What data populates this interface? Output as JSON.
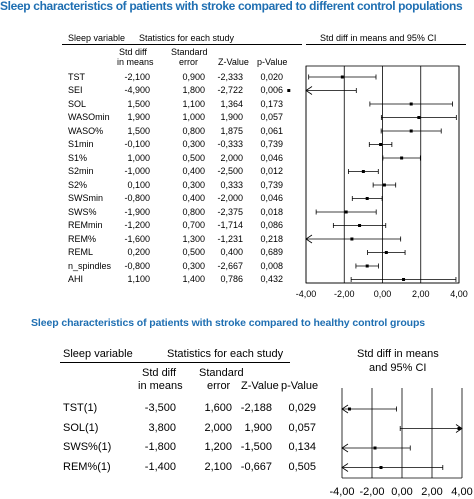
{
  "chart_data": [
    {
      "type": "forest",
      "title": "Sleep characteristics of patients with stroke compared to different control populations",
      "header": {
        "variable": "Sleep variable",
        "stats_group": "Statistics for each study",
        "std_diff": [
          "Std diff",
          "in means"
        ],
        "std_error": [
          "Standard",
          "error"
        ],
        "z_value": "Z-Value",
        "p_value": "p-Value",
        "plot_header": "Std diff in means and 95% CI"
      },
      "rows": [
        {
          "label": "TST",
          "std_diff": "-2,100",
          "se": "0,900",
          "z": "-2,333",
          "p": "0,020",
          "est": -2.1,
          "lo": -3.86,
          "hi": -0.34
        },
        {
          "label": "SEI",
          "std_diff": "-4,900",
          "se": "1,800",
          "z": "-2,722",
          "p": "0,006",
          "est": -4.9,
          "lo": -8.43,
          "hi": -1.37
        },
        {
          "label": "SOL",
          "std_diff": "1,500",
          "se": "1,100",
          "z": "1,364",
          "p": "0,173",
          "est": 1.5,
          "lo": -0.66,
          "hi": 3.66
        },
        {
          "label": "WASOmin",
          "std_diff": "1,900",
          "se": "1,000",
          "z": "1,900",
          "p": "0,057",
          "est": 1.9,
          "lo": -0.06,
          "hi": 3.86
        },
        {
          "label": "WASO%",
          "std_diff": "1,500",
          "se": "0,800",
          "z": "1,875",
          "p": "0,061",
          "est": 1.5,
          "lo": -0.07,
          "hi": 3.07
        },
        {
          "label": "S1min",
          "std_diff": "-0,100",
          "se": "0,300",
          "z": "-0,333",
          "p": "0,739",
          "est": -0.1,
          "lo": -0.69,
          "hi": 0.49
        },
        {
          "label": "S1%",
          "std_diff": "1,000",
          "se": "0,500",
          "z": "2,000",
          "p": "0,046",
          "est": 1.0,
          "lo": 0.02,
          "hi": 1.98
        },
        {
          "label": "S2min",
          "std_diff": "-1,000",
          "se": "0,400",
          "z": "-2,500",
          "p": "0,012",
          "est": -1.0,
          "lo": -1.78,
          "hi": -0.22
        },
        {
          "label": "S2%",
          "std_diff": "0,100",
          "se": "0,300",
          "z": "0,333",
          "p": "0,739",
          "est": 0.1,
          "lo": -0.49,
          "hi": 0.69
        },
        {
          "label": "SWSmin",
          "std_diff": "-0,800",
          "se": "0,400",
          "z": "-2,000",
          "p": "0,046",
          "est": -0.8,
          "lo": -1.58,
          "hi": -0.02
        },
        {
          "label": "SWS%",
          "std_diff": "-1,900",
          "se": "0,800",
          "z": "-2,375",
          "p": "0,018",
          "est": -1.9,
          "lo": -3.47,
          "hi": -0.33
        },
        {
          "label": "REMmin",
          "std_diff": "-1,200",
          "se": "0,700",
          "z": "-1,714",
          "p": "0,086",
          "est": -1.2,
          "lo": -2.57,
          "hi": 0.17
        },
        {
          "label": "REM%",
          "std_diff": "-1,600",
          "se": "1,300",
          "z": "-1,231",
          "p": "0,218",
          "est": -1.6,
          "lo": -4.15,
          "hi": 0.95
        },
        {
          "label": "REML",
          "std_diff": "0,200",
          "se": "0,500",
          "z": "0,400",
          "p": "0,689",
          "est": 0.2,
          "lo": -0.78,
          "hi": 1.18
        },
        {
          "label": "n_spindles",
          "std_diff": "-0,800",
          "se": "0,300",
          "z": "-2,667",
          "p": "0,008",
          "est": -0.8,
          "lo": -1.39,
          "hi": -0.21
        },
        {
          "label": "AHI",
          "std_diff": "1,100",
          "se": "1,400",
          "z": "0,786",
          "p": "0,432",
          "est": 1.1,
          "lo": -1.64,
          "hi": 3.84
        }
      ],
      "x_ticks": [
        -4,
        -2,
        0,
        2,
        4
      ],
      "x_tick_labels": [
        "-4,00",
        "-2,00",
        "0,00",
        "2,00",
        "4,00"
      ],
      "xlim": [
        -4,
        4
      ]
    },
    {
      "type": "forest",
      "title": "Sleep characteristics of patients with stroke compared to healthy control groups",
      "header": {
        "variable": "Sleep variable",
        "stats_group": "Statistics for each study",
        "std_diff": [
          "Std diff",
          "in means"
        ],
        "std_error": [
          "Standard",
          "error"
        ],
        "z_value": "Z-Value",
        "p_value": "p-Value",
        "plot_header": [
          "Std diff in means",
          "and 95% CI"
        ]
      },
      "rows": [
        {
          "label": "TST(1)",
          "std_diff": "-3,500",
          "se": "1,600",
          "z": "-2,188",
          "p": "0,029",
          "est": -3.5,
          "lo": -6.64,
          "hi": -0.36
        },
        {
          "label": "SOL(1)",
          "std_diff": "3,800",
          "se": "2,000",
          "z": "1,900",
          "p": "0,057",
          "est": 3.8,
          "lo": -0.12,
          "hi": 7.72
        },
        {
          "label": "SWS%(1)",
          "std_diff": "-1,800",
          "se": "1,200",
          "z": "-1,500",
          "p": "0,134",
          "est": -1.8,
          "lo": -4.15,
          "hi": 0.55
        },
        {
          "label": "REM%(1)",
          "std_diff": "-1,400",
          "se": "2,100",
          "z": "-0,667",
          "p": "0,505",
          "est": -1.4,
          "lo": -5.52,
          "hi": 2.72
        }
      ],
      "x_ticks": [
        -4,
        -2,
        0,
        2,
        4
      ],
      "x_tick_labels": [
        "-4,00",
        "-2,00",
        "0,00",
        "2,00",
        "4,00"
      ],
      "xlim": [
        -4,
        4
      ]
    }
  ]
}
